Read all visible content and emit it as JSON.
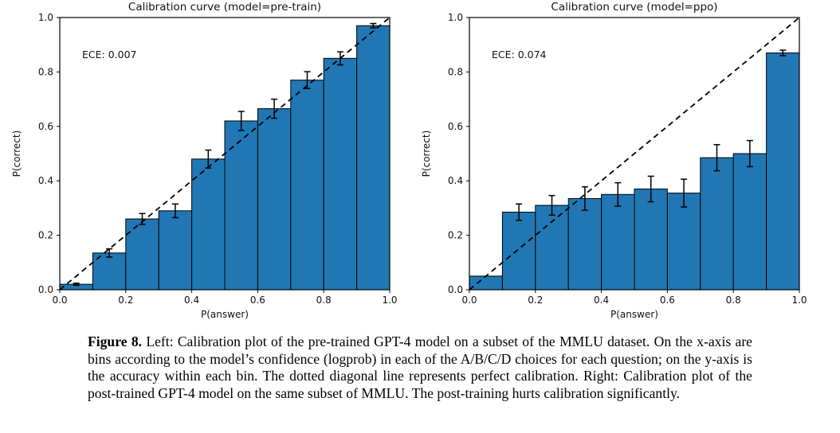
{
  "figure_caption": {
    "label": "Figure 8.",
    "text": "Left: Calibration plot of the pre-trained GPT-4 model on a subset of the MMLU dataset. On the x-axis are bins according to the model’s confidence (logprob) in each of the A/B/C/D choices for each question; on the y-axis is the accuracy within each bin. The dotted diagonal line represents perfect calibration. Right: Calibration plot of the post-trained GPT-4 model on the same subset of MMLU. The post-training hurts calibration significantly."
  },
  "chart_data": [
    {
      "type": "bar",
      "title": "Calibration curve (model=pre-train)",
      "annotation": "ECE: 0.007",
      "xlabel": "P(answer)",
      "ylabel": "P(correct)",
      "xlim": [
        0.0,
        1.0
      ],
      "ylim": [
        0.0,
        1.0
      ],
      "bin_width": 0.1,
      "categories": [
        "0.0-0.1",
        "0.1-0.2",
        "0.2-0.3",
        "0.3-0.4",
        "0.4-0.5",
        "0.5-0.6",
        "0.6-0.7",
        "0.7-0.8",
        "0.8-0.9",
        "0.9-1.0"
      ],
      "values": [
        0.02,
        0.135,
        0.26,
        0.29,
        0.48,
        0.62,
        0.665,
        0.77,
        0.85,
        0.97
      ],
      "errors": [
        0.004,
        0.015,
        0.02,
        0.025,
        0.033,
        0.035,
        0.035,
        0.031,
        0.024,
        0.008
      ],
      "xticks": [
        "0.0",
        "0.2",
        "0.4",
        "0.6",
        "0.8",
        "1.0"
      ],
      "yticks": [
        "0.0",
        "0.2",
        "0.4",
        "0.6",
        "0.8",
        "1.0"
      ],
      "diagonal_line": "perfect calibration",
      "grid": false,
      "legend": false,
      "bar_color": "#2077b4",
      "edge_color": "#000000"
    },
    {
      "type": "bar",
      "title": "Calibration curve (model=ppo)",
      "annotation": "ECE: 0.074",
      "xlabel": "P(answer)",
      "ylabel": "P(correct)",
      "xlim": [
        0.0,
        1.0
      ],
      "ylim": [
        0.0,
        1.0
      ],
      "bin_width": 0.1,
      "categories": [
        "0.0-0.1",
        "0.1-0.2",
        "0.2-0.3",
        "0.3-0.4",
        "0.4-0.5",
        "0.5-0.6",
        "0.6-0.7",
        "0.7-0.8",
        "0.8-0.9",
        "0.9-1.0"
      ],
      "values": [
        0.05,
        0.285,
        0.31,
        0.335,
        0.35,
        0.37,
        0.355,
        0.485,
        0.5,
        0.87
      ],
      "errors": [
        0,
        0.03,
        0.036,
        0.043,
        0.043,
        0.047,
        0.051,
        0.048,
        0.048,
        0.01
      ],
      "xticks": [
        "0.0",
        "0.2",
        "0.4",
        "0.6",
        "0.8",
        "1.0"
      ],
      "yticks": [
        "0.0",
        "0.2",
        "0.4",
        "0.6",
        "0.8",
        "1.0"
      ],
      "diagonal_line": "perfect calibration",
      "grid": false,
      "legend": false,
      "bar_color": "#2077b4",
      "edge_color": "#000000"
    }
  ]
}
